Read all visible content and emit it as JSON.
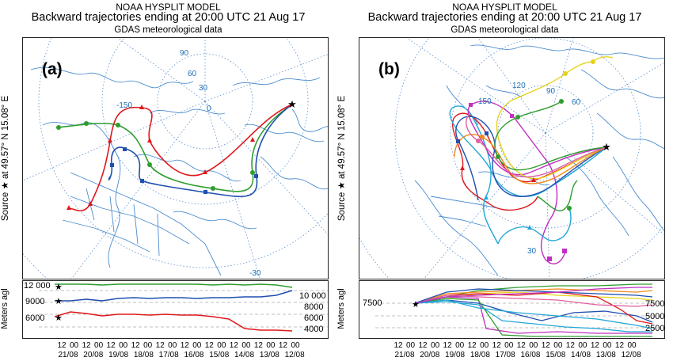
{
  "header": {
    "model": "NOAA HYSPLIT MODEL",
    "title": "Backward trajectories ending at 20:00 UTC 21 Aug 17",
    "subtitle": "GDAS meteorological data"
  },
  "source_label": "Source ★  at  49.57° N  15.08° E",
  "vertical_axis_label": "Meters agl",
  "panel_a": {
    "label": "(a)",
    "graticule_labels": [
      "90",
      "60",
      "30",
      "0",
      "-150",
      "-30"
    ],
    "height_labels_left": [
      "12 000",
      "9000",
      "6000"
    ],
    "height_labels_right": [
      "10 000",
      "8000",
      "6000",
      "4000"
    ],
    "time_ticks": [
      "12",
      "00",
      "12",
      "00",
      "12",
      "00",
      "12",
      "00",
      "12",
      "00",
      "12",
      "00",
      "12",
      "00",
      "12",
      "00",
      "12",
      "00",
      "12",
      "00"
    ],
    "date_ticks": [
      "21/08",
      "20/08",
      "19/08",
      "18/08",
      "17/08",
      "16/08",
      "15/08",
      "14/08",
      "13/08",
      "12/08"
    ]
  },
  "panel_b": {
    "label": "(b)",
    "graticule_labels": [
      "120",
      "90",
      "60",
      "150",
      "30"
    ],
    "height_labels_left": [
      "7500"
    ],
    "height_labels_right": [
      "7500",
      "5000",
      "2500"
    ],
    "time_ticks": [
      "12",
      "00",
      "12",
      "00",
      "12",
      "00",
      "12",
      "00",
      "12",
      "00",
      "12",
      "00",
      "12",
      "00",
      "12",
      "00",
      "12",
      "00",
      "12",
      "00"
    ],
    "date_ticks": [
      "21/08",
      "20/08",
      "19/08",
      "18/08",
      "17/08",
      "16/08",
      "15/08",
      "14/08",
      "13/08",
      "12/08"
    ]
  },
  "trajectories_a": [
    {
      "color": "#2e9d2e",
      "marker": "circle"
    },
    {
      "color": "#1f4fb0",
      "marker": "square"
    },
    {
      "color": "#e0181c",
      "marker": "triangle"
    }
  ],
  "colors": {
    "coast": "#4a8ccf",
    "graticule": "#5a8fd0",
    "green": "#2e9d2e",
    "blue": "#1f4fb0",
    "red": "#e0181c",
    "magenta": "#c030c0",
    "cyan": "#22a7d8",
    "yellow": "#e6d21c",
    "orange": "#f08a1c",
    "pink": "#e060a0"
  }
}
